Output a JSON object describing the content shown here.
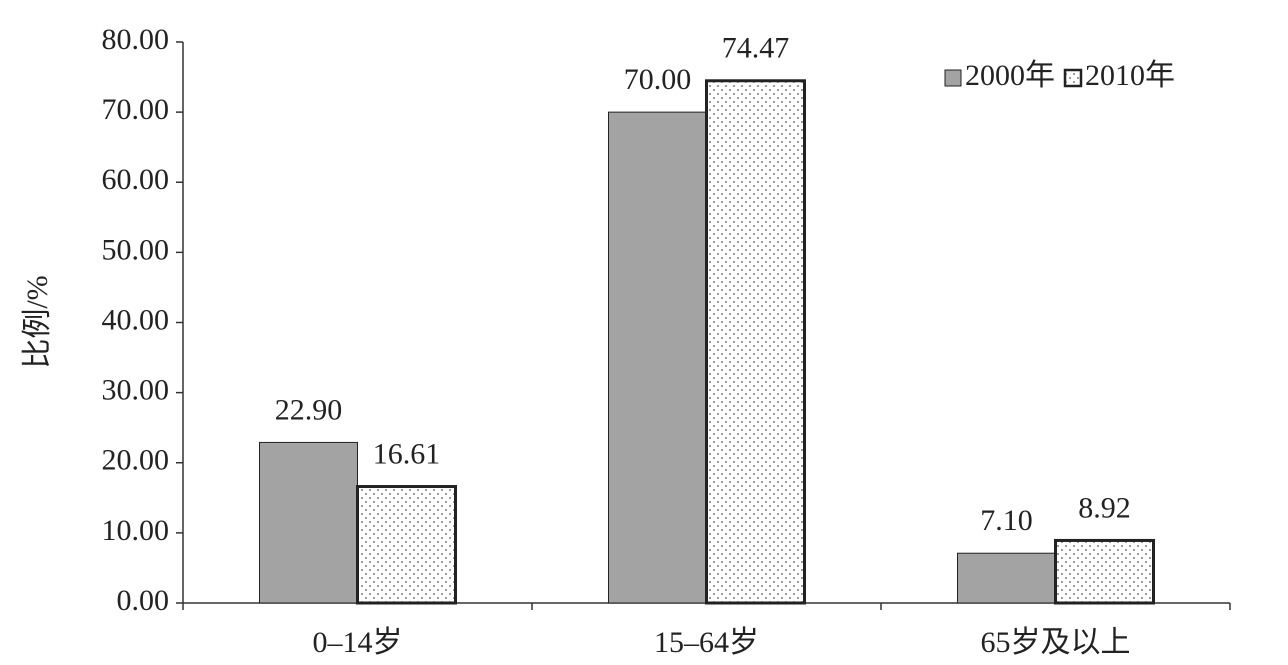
{
  "chart_data": {
    "type": "bar",
    "y_label": "比例/%",
    "categories": [
      "0–14岁",
      "15–64岁",
      "65岁及以上"
    ],
    "series": [
      {
        "name": "2000年",
        "color": "#a3a3a3",
        "values": [
          22.9,
          70,
          7.1
        ],
        "value_labels": [
          "22.90",
          "70.00",
          "7.10"
        ]
      },
      {
        "name": "2010年",
        "color": "#ffffff",
        "pattern": "dots",
        "values": [
          16.61,
          74.47,
          8.92
        ],
        "value_labels": [
          "16.61",
          "74.47",
          "8.92"
        ]
      }
    ],
    "ylim": [
      0,
      80
    ],
    "yticks": [
      {
        "value": 0,
        "label": "0.00"
      },
      {
        "value": 10,
        "label": "10.00"
      },
      {
        "value": 20,
        "label": "20.00"
      },
      {
        "value": 30,
        "label": "30.00"
      },
      {
        "value": 40,
        "label": "40.00"
      },
      {
        "value": 50,
        "label": "50.00"
      },
      {
        "value": 60,
        "label": "60.00"
      },
      {
        "value": 70,
        "label": "70.00"
      },
      {
        "value": 80,
        "label": "80.00"
      }
    ],
    "grid": false,
    "legend": "top-right"
  }
}
